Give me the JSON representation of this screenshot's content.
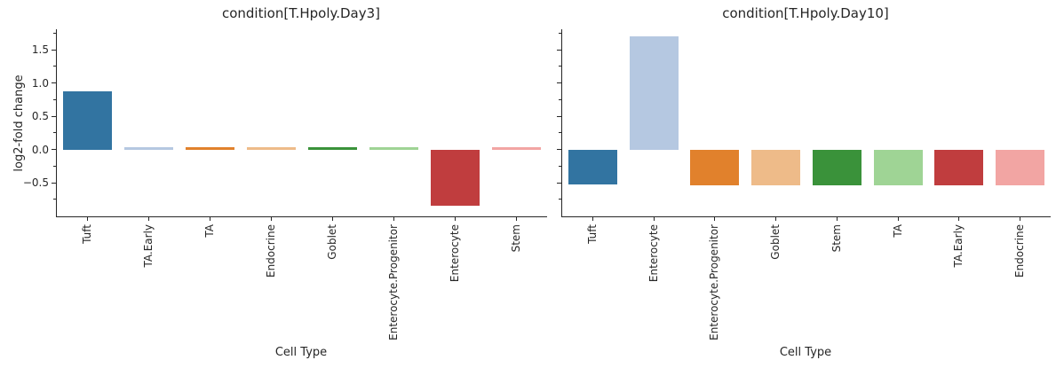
{
  "figure": {
    "background": "#ffffff",
    "text_color": "#262626",
    "axis_color": "#262626",
    "ylabel": "log2-fold change",
    "y_axis": {
      "ylim": [
        -1.005,
        1.809
      ],
      "major_ticks": [
        {
          "value": 1.5,
          "label": "1.5"
        },
        {
          "value": 1.0,
          "label": "1.0"
        },
        {
          "value": 0.5,
          "label": "0.5"
        },
        {
          "value": 0.0,
          "label": "0.0"
        },
        {
          "value": -0.5,
          "label": "−0.5"
        }
      ],
      "minor_ticks": [
        1.75,
        1.25,
        0.75,
        0.25,
        -0.25,
        -0.75
      ]
    },
    "palette": [
      "#3274a1",
      "#b5c8e1",
      "#e1812c",
      "#eebb89",
      "#3a923a",
      "#9fd495",
      "#c03d3e",
      "#f2a5a3"
    ]
  },
  "chart_data": [
    {
      "type": "bar",
      "title": "condition[T.Hpoly.Day3]",
      "xlabel": "Cell Type",
      "ylabel": "log2-fold change",
      "ylim": [
        -1.005,
        1.809
      ],
      "grid": false,
      "legend": null,
      "categories": [
        "Tuft",
        "TA.Early",
        "TA",
        "Endocrine",
        "Goblet",
        "Enterocyte.Progenitor",
        "Enterocyte",
        "Stem"
      ],
      "values": [
        0.87,
        0.03,
        0.03,
        0.03,
        0.03,
        0.03,
        -0.85,
        0.03
      ],
      "bar_colors": [
        "#3274a1",
        "#b5c8e1",
        "#e1812c",
        "#eebb89",
        "#3a923a",
        "#9fd495",
        "#c03d3e",
        "#f2a5a3"
      ]
    },
    {
      "type": "bar",
      "title": "condition[T.Hpoly.Day10]",
      "xlabel": "Cell Type",
      "ylabel": "log2-fold change",
      "ylim": [
        -1.005,
        1.809
      ],
      "grid": false,
      "legend": null,
      "categories": [
        "Tuft",
        "Enterocyte",
        "Enterocyte.Progenitor",
        "Goblet",
        "Stem",
        "TA",
        "TA.Early",
        "Endocrine"
      ],
      "values": [
        -0.53,
        1.7,
        -0.54,
        -0.54,
        -0.54,
        -0.54,
        -0.54,
        -0.54
      ],
      "bar_colors": [
        "#3274a1",
        "#b5c8e1",
        "#e1812c",
        "#eebb89",
        "#3a923a",
        "#9fd495",
        "#c03d3e",
        "#f2a5a3"
      ]
    }
  ]
}
